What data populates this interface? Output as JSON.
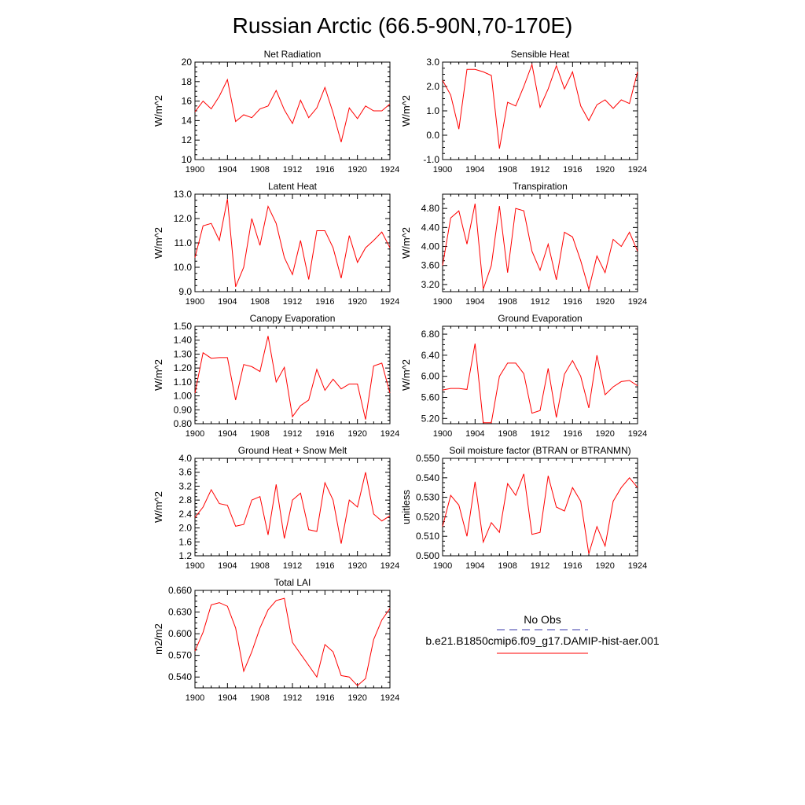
{
  "title": "Russian Arctic (66.5-90N,70-170E)",
  "legend": {
    "obs_label": "No Obs",
    "obs_color": "#3a3aa8",
    "model_label": "b.e21.B1850cmip6.f09_g17.DAMIP-hist-aer.001",
    "model_color": "#ff0000"
  },
  "chart_data": [
    {
      "type": "line",
      "title": "Net Radiation",
      "ylabel": "W/m^2",
      "xlim": [
        1900,
        1924
      ],
      "ylim": [
        10,
        20
      ],
      "xticks": [
        1900,
        1904,
        1908,
        1912,
        1916,
        1920,
        1924
      ],
      "yticks": [
        10,
        12,
        14,
        16,
        18,
        20
      ],
      "ytick_labels": [
        "10",
        "12",
        "14",
        "16",
        "18",
        "20"
      ],
      "series": [
        {
          "name": "b.e21.B1850cmip6.f09_g17.DAMIP-hist-aer.001",
          "x": [
            1900,
            1901,
            1902,
            1903,
            1904,
            1905,
            1906,
            1907,
            1908,
            1909,
            1910,
            1911,
            1912,
            1913,
            1914,
            1915,
            1916,
            1917,
            1918,
            1919,
            1920,
            1921,
            1922,
            1923,
            1924
          ],
          "y": [
            14.9,
            16.0,
            15.2,
            16.5,
            18.2,
            13.9,
            14.6,
            14.3,
            15.2,
            15.5,
            17.1,
            15.1,
            13.7,
            16.1,
            14.3,
            15.3,
            17.4,
            14.8,
            11.8,
            15.3,
            14.2,
            15.5,
            15.0,
            15.0,
            15.7
          ]
        }
      ]
    },
    {
      "type": "line",
      "title": "Sensible Heat",
      "ylabel": "W/m^2",
      "xlim": [
        1900,
        1924
      ],
      "ylim": [
        -1,
        3
      ],
      "xticks": [
        1900,
        1904,
        1908,
        1912,
        1916,
        1920,
        1924
      ],
      "yticks": [
        -1,
        0,
        1,
        2,
        3
      ],
      "ytick_labels": [
        "-1.0",
        "0.0",
        "1.0",
        "2.0",
        "3.0"
      ],
      "series": [
        {
          "name": "b.e21.B1850cmip6.f09_g17.DAMIP-hist-aer.001",
          "x": [
            1900,
            1901,
            1902,
            1903,
            1904,
            1905,
            1906,
            1907,
            1908,
            1909,
            1910,
            1911,
            1912,
            1913,
            1914,
            1915,
            1916,
            1917,
            1918,
            1919,
            1920,
            1921,
            1922,
            1923,
            1924
          ],
          "y": [
            2.25,
            1.65,
            0.25,
            2.7,
            2.7,
            2.6,
            2.45,
            -0.55,
            1.35,
            1.2,
            2.0,
            2.9,
            1.15,
            1.9,
            2.85,
            1.9,
            2.6,
            1.2,
            0.6,
            1.25,
            1.45,
            1.1,
            1.45,
            1.3,
            2.6
          ]
        }
      ]
    },
    {
      "type": "line",
      "title": "Latent Heat",
      "ylabel": "W/m^2",
      "xlim": [
        1900,
        1924
      ],
      "ylim": [
        9,
        13
      ],
      "xticks": [
        1900,
        1904,
        1908,
        1912,
        1916,
        1920,
        1924
      ],
      "yticks": [
        9,
        10,
        11,
        12,
        13
      ],
      "ytick_labels": [
        "9.0",
        "10.0",
        "11.0",
        "12.0",
        "13.0"
      ],
      "series": [
        {
          "name": "b.e21.B1850cmip6.f09_g17.DAMIP-hist-aer.001",
          "x": [
            1900,
            1901,
            1902,
            1903,
            1904,
            1905,
            1906,
            1907,
            1908,
            1909,
            1910,
            1911,
            1912,
            1913,
            1914,
            1915,
            1916,
            1917,
            1918,
            1919,
            1920,
            1921,
            1922,
            1923,
            1924
          ],
          "y": [
            10.4,
            11.7,
            11.8,
            11.1,
            12.8,
            9.2,
            10.0,
            12.0,
            10.9,
            12.5,
            11.8,
            10.4,
            9.7,
            11.1,
            9.5,
            11.5,
            11.5,
            10.8,
            9.55,
            11.3,
            10.2,
            10.8,
            11.1,
            11.45,
            10.8
          ]
        }
      ]
    },
    {
      "type": "line",
      "title": "Transpiration",
      "ylabel": "W/m^2",
      "xlim": [
        1900,
        1924
      ],
      "ylim": [
        3.05,
        5.1
      ],
      "xticks": [
        1900,
        1904,
        1908,
        1912,
        1916,
        1920,
        1924
      ],
      "yticks": [
        3.2,
        3.6,
        4.0,
        4.4,
        4.8
      ],
      "ytick_labels": [
        "3.20",
        "3.60",
        "4.00",
        "4.40",
        "4.80"
      ],
      "series": [
        {
          "name": "b.e21.B1850cmip6.f09_g17.DAMIP-hist-aer.001",
          "x": [
            1900,
            1901,
            1902,
            1903,
            1904,
            1905,
            1906,
            1907,
            1908,
            1909,
            1910,
            1911,
            1912,
            1913,
            1914,
            1915,
            1916,
            1917,
            1918,
            1919,
            1920,
            1921,
            1922,
            1923,
            1924
          ],
          "y": [
            3.6,
            4.6,
            4.75,
            4.05,
            4.9,
            3.1,
            3.6,
            4.85,
            3.45,
            4.8,
            4.75,
            3.9,
            3.5,
            4.05,
            3.3,
            4.3,
            4.2,
            3.7,
            3.1,
            3.8,
            3.45,
            4.15,
            4.0,
            4.3,
            3.9
          ]
        }
      ]
    },
    {
      "type": "line",
      "title": "Canopy Evaporation",
      "ylabel": "W/m^2",
      "xlim": [
        1900,
        1924
      ],
      "ylim": [
        0.8,
        1.5
      ],
      "xticks": [
        1900,
        1904,
        1908,
        1912,
        1916,
        1920,
        1924
      ],
      "yticks": [
        0.8,
        0.9,
        1.0,
        1.1,
        1.2,
        1.3,
        1.4,
        1.5
      ],
      "ytick_labels": [
        "0.80",
        "0.90",
        "1.00",
        "1.10",
        "1.20",
        "1.30",
        "1.40",
        "1.50"
      ],
      "series": [
        {
          "name": "b.e21.B1850cmip6.f09_g17.DAMIP-hist-aer.001",
          "x": [
            1900,
            1901,
            1902,
            1903,
            1904,
            1905,
            1906,
            1907,
            1908,
            1909,
            1910,
            1911,
            1912,
            1913,
            1914,
            1915,
            1916,
            1917,
            1918,
            1919,
            1920,
            1921,
            1922,
            1923,
            1924
          ],
          "y": [
            1.02,
            1.31,
            1.27,
            1.275,
            1.275,
            0.97,
            1.225,
            1.21,
            1.175,
            1.43,
            1.1,
            1.205,
            0.85,
            0.93,
            0.97,
            1.19,
            1.04,
            1.12,
            1.05,
            1.085,
            1.085,
            0.83,
            1.215,
            1.235,
            1.02
          ]
        }
      ]
    },
    {
      "type": "line",
      "title": "Ground Evaporation",
      "ylabel": "W/m^2",
      "xlim": [
        1900,
        1924
      ],
      "ylim": [
        5.1,
        6.95
      ],
      "xticks": [
        1900,
        1904,
        1908,
        1912,
        1916,
        1920,
        1924
      ],
      "yticks": [
        5.2,
        5.6,
        6.0,
        6.4,
        6.8
      ],
      "ytick_labels": [
        "5.20",
        "5.60",
        "6.00",
        "6.40",
        "6.80"
      ],
      "series": [
        {
          "name": "b.e21.B1850cmip6.f09_g17.DAMIP-hist-aer.001",
          "x": [
            1900,
            1901,
            1902,
            1903,
            1904,
            1905,
            1906,
            1907,
            1908,
            1909,
            1910,
            1911,
            1912,
            1913,
            1914,
            1915,
            1916,
            1917,
            1918,
            1919,
            1920,
            1921,
            1922,
            1923,
            1924
          ],
          "y": [
            5.74,
            5.77,
            5.77,
            5.75,
            6.62,
            5.12,
            5.12,
            6.0,
            6.25,
            6.25,
            6.05,
            5.3,
            5.35,
            6.15,
            5.22,
            6.04,
            6.3,
            6.0,
            5.4,
            6.4,
            5.65,
            5.8,
            5.9,
            5.92,
            5.82
          ]
        }
      ]
    },
    {
      "type": "line",
      "title": "Ground Heat + Snow Melt",
      "ylabel": "W/m^2",
      "xlim": [
        1900,
        1924
      ],
      "ylim": [
        1.2,
        4.0
      ],
      "xticks": [
        1900,
        1904,
        1908,
        1912,
        1916,
        1920,
        1924
      ],
      "yticks": [
        1.2,
        1.6,
        2.0,
        2.4,
        2.8,
        3.2,
        3.6,
        4.0
      ],
      "ytick_labels": [
        "1.2",
        "1.6",
        "2.0",
        "2.4",
        "2.8",
        "3.2",
        "3.6",
        "4.0"
      ],
      "series": [
        {
          "name": "b.e21.B1850cmip6.f09_g17.DAMIP-hist-aer.001",
          "x": [
            1900,
            1901,
            1902,
            1903,
            1904,
            1905,
            1906,
            1907,
            1908,
            1909,
            1910,
            1911,
            1912,
            1913,
            1914,
            1915,
            1916,
            1917,
            1918,
            1919,
            1920,
            1921,
            1922,
            1923,
            1924
          ],
          "y": [
            2.3,
            2.6,
            3.1,
            2.7,
            2.65,
            2.05,
            2.1,
            2.8,
            2.9,
            1.8,
            3.25,
            1.7,
            2.8,
            3.0,
            1.95,
            1.9,
            3.3,
            2.8,
            1.55,
            2.8,
            2.6,
            3.6,
            2.4,
            2.2,
            2.35
          ]
        }
      ]
    },
    {
      "type": "line",
      "title": "Soil moisture factor (BTRAN or BTRANMN)",
      "ylabel": "unitless",
      "xlim": [
        1900,
        1924
      ],
      "ylim": [
        0.5,
        0.55
      ],
      "xticks": [
        1900,
        1904,
        1908,
        1912,
        1916,
        1920,
        1924
      ],
      "yticks": [
        0.5,
        0.51,
        0.52,
        0.53,
        0.54,
        0.55
      ],
      "ytick_labels": [
        "0.500",
        "0.510",
        "0.520",
        "0.530",
        "0.540",
        "0.550"
      ],
      "series": [
        {
          "name": "b.e21.B1850cmip6.f09_g17.DAMIP-hist-aer.001",
          "x": [
            1900,
            1901,
            1902,
            1903,
            1904,
            1905,
            1906,
            1907,
            1908,
            1909,
            1910,
            1911,
            1912,
            1913,
            1914,
            1915,
            1916,
            1917,
            1918,
            1919,
            1920,
            1921,
            1922,
            1923,
            1924
          ],
          "y": [
            0.515,
            0.531,
            0.526,
            0.51,
            0.538,
            0.507,
            0.517,
            0.512,
            0.537,
            0.531,
            0.542,
            0.511,
            0.512,
            0.541,
            0.525,
            0.523,
            0.535,
            0.528,
            0.501,
            0.515,
            0.505,
            0.528,
            0.535,
            0.54,
            0.535
          ]
        }
      ]
    },
    {
      "type": "line",
      "title": "Total LAI",
      "ylabel": "m2/m2",
      "xlim": [
        1900,
        1924
      ],
      "ylim": [
        0.525,
        0.66
      ],
      "xticks": [
        1900,
        1904,
        1908,
        1912,
        1916,
        1920,
        1924
      ],
      "yticks": [
        0.54,
        0.57,
        0.6,
        0.63,
        0.66
      ],
      "ytick_labels": [
        "0.540",
        "0.570",
        "0.600",
        "0.630",
        "0.660"
      ],
      "series": [
        {
          "name": "b.e21.B1850cmip6.f09_g17.DAMIP-hist-aer.001",
          "x": [
            1900,
            1901,
            1902,
            1903,
            1904,
            1905,
            1906,
            1907,
            1908,
            1909,
            1910,
            1911,
            1912,
            1913,
            1914,
            1915,
            1916,
            1917,
            1918,
            1919,
            1920,
            1921,
            1922,
            1923,
            1924
          ],
          "y": [
            0.576,
            0.602,
            0.64,
            0.643,
            0.638,
            0.608,
            0.548,
            0.575,
            0.608,
            0.633,
            0.646,
            0.649,
            0.588,
            0.572,
            0.556,
            0.54,
            0.585,
            0.575,
            0.542,
            0.54,
            0.528,
            0.538,
            0.592,
            0.619,
            0.635
          ]
        }
      ]
    }
  ]
}
